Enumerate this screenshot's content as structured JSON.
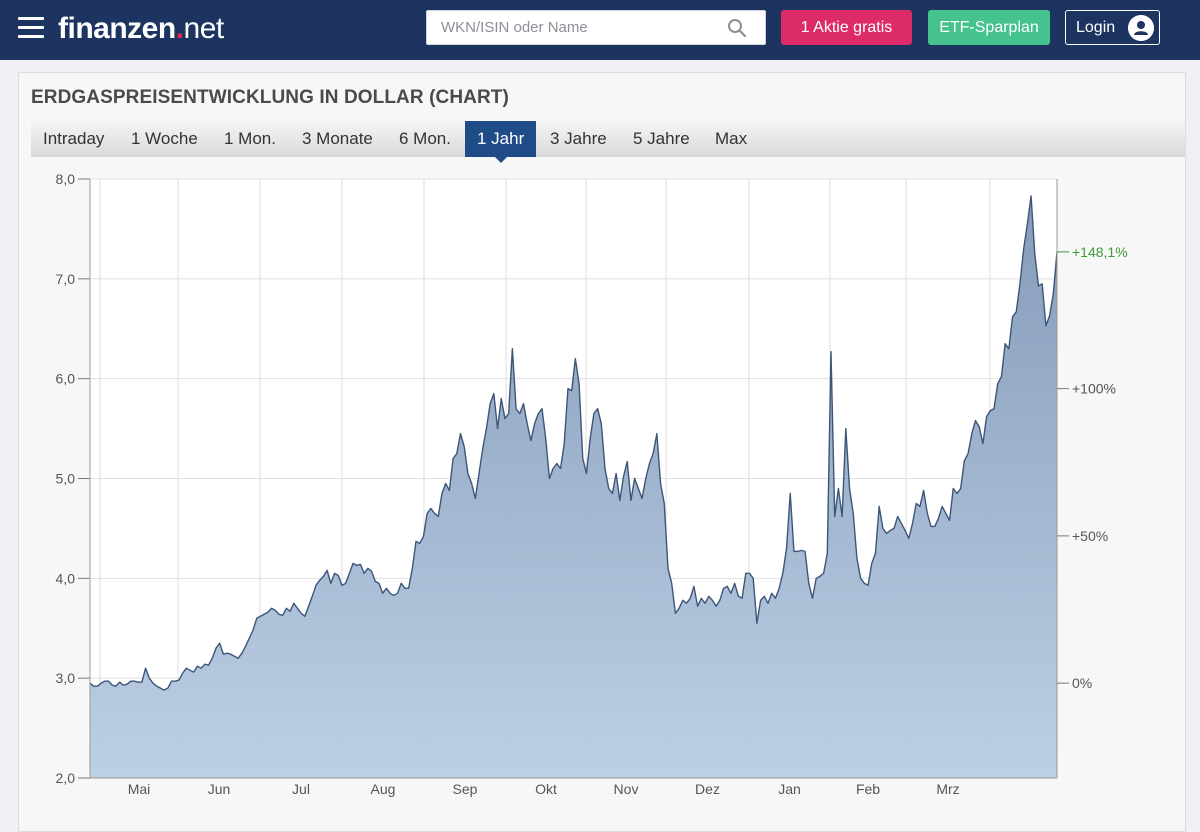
{
  "header": {
    "logo_bold": "finanzen",
    "logo_dot": ".",
    "logo_light": "net",
    "search_placeholder": "WKN/ISIN oder Name",
    "btn_gratis": "1 Aktie gratis",
    "btn_etf": "ETF-Sparplan",
    "btn_login": "Login"
  },
  "card": {
    "title": "ERDGASPREISENTWICKLUNG IN DOLLAR (CHART)"
  },
  "tabs": [
    {
      "label": "Intraday",
      "active": false
    },
    {
      "label": "1 Woche",
      "active": false
    },
    {
      "label": "1 Mon.",
      "active": false
    },
    {
      "label": "3 Monate",
      "active": false
    },
    {
      "label": "6 Mon.",
      "active": false
    },
    {
      "label": "1 Jahr",
      "active": true
    },
    {
      "label": "3 Jahre",
      "active": false
    },
    {
      "label": "5 Jahre",
      "active": false
    },
    {
      "label": "Max",
      "active": false
    }
  ],
  "chart_data": {
    "type": "area",
    "title": "",
    "ylim": [
      2.0,
      8.0
    ],
    "y_ticks": [
      "2,0",
      "3,0",
      "4,0",
      "5,0",
      "6,0",
      "7,0",
      "8,0"
    ],
    "y_tick_values": [
      2,
      3,
      4,
      5,
      6,
      7,
      8
    ],
    "right_ticks": [
      {
        "label": "0%",
        "value": 2.95
      },
      {
        "label": "+50%",
        "value": 4.425
      },
      {
        "label": "+100%",
        "value": 5.9
      },
      {
        "label": "+148,1%",
        "value": 7.27,
        "highlight": true
      }
    ],
    "x_labels": [
      "Mai",
      "Jun",
      "Jul",
      "Aug",
      "Sep",
      "Okt",
      "Nov",
      "Dez",
      "Jan",
      "Feb",
      "Mrz"
    ],
    "grid": true,
    "fill_color": "#8fa7c4",
    "line_color": "#3d5578",
    "series": [
      {
        "values": [
          2.95,
          2.92,
          2.92,
          2.95,
          2.97,
          2.97,
          2.93,
          2.92,
          2.96,
          2.93,
          2.94,
          2.97,
          2.97,
          2.96,
          2.96,
          3.1,
          3.0,
          2.95,
          2.92,
          2.9,
          2.88,
          2.9,
          2.97,
          2.97,
          2.98,
          3.05,
          3.1,
          3.08,
          3.06,
          3.12,
          3.1,
          3.14,
          3.13,
          3.2,
          3.3,
          3.35,
          3.24,
          3.25,
          3.24,
          3.22,
          3.2,
          3.25,
          3.32,
          3.4,
          3.48,
          3.6,
          3.62,
          3.64,
          3.66,
          3.7,
          3.68,
          3.64,
          3.63,
          3.7,
          3.67,
          3.75,
          3.7,
          3.65,
          3.62,
          3.72,
          3.82,
          3.93,
          3.98,
          4.02,
          4.08,
          3.95,
          4.05,
          4.03,
          3.93,
          3.95,
          4.05,
          4.15,
          4.13,
          4.14,
          4.05,
          4.1,
          4.07,
          3.97,
          3.95,
          3.85,
          3.9,
          3.85,
          3.83,
          3.85,
          3.95,
          3.9,
          3.9,
          4.1,
          4.37,
          4.35,
          4.42,
          4.65,
          4.7,
          4.65,
          4.62,
          4.85,
          4.95,
          4.88,
          5.2,
          5.25,
          5.45,
          5.32,
          5.05,
          4.95,
          4.8,
          5.05,
          5.3,
          5.5,
          5.75,
          5.85,
          5.5,
          5.8,
          5.6,
          5.65,
          6.3,
          5.7,
          5.65,
          5.75,
          5.55,
          5.38,
          5.55,
          5.65,
          5.7,
          5.4,
          5.0,
          5.1,
          5.15,
          5.1,
          5.35,
          5.9,
          5.88,
          6.2,
          5.95,
          5.2,
          5.05,
          5.4,
          5.65,
          5.7,
          5.55,
          5.1,
          4.9,
          4.85,
          5.05,
          4.78,
          5.02,
          5.17,
          4.78,
          5.0,
          4.9,
          4.8,
          5.0,
          5.15,
          5.25,
          5.45,
          4.95,
          4.75,
          4.1,
          3.95,
          3.65,
          3.7,
          3.78,
          3.75,
          3.8,
          3.92,
          3.72,
          3.8,
          3.75,
          3.82,
          3.78,
          3.72,
          3.78,
          3.9,
          3.92,
          3.85,
          3.95,
          3.82,
          3.8,
          4.05,
          4.05,
          4.0,
          3.55,
          3.78,
          3.82,
          3.75,
          3.85,
          3.8,
          3.9,
          4.05,
          4.3,
          4.85,
          4.27,
          4.27,
          4.28,
          4.27,
          3.95,
          3.8,
          4.0,
          4.02,
          4.05,
          4.25,
          6.27,
          4.62,
          4.9,
          4.62,
          5.5,
          4.9,
          4.65,
          4.2,
          4.0,
          3.95,
          3.93,
          4.15,
          4.25,
          4.72,
          4.5,
          4.45,
          4.48,
          4.5,
          4.62,
          4.55,
          4.48,
          4.4,
          4.55,
          4.75,
          4.72,
          4.88,
          4.65,
          4.52,
          4.52,
          4.6,
          4.72,
          4.65,
          4.58,
          4.9,
          4.85,
          4.9,
          5.18,
          5.25,
          5.45,
          5.58,
          5.52,
          5.35,
          5.62,
          5.68,
          5.7,
          5.95,
          6.02,
          6.35,
          6.3,
          6.62,
          6.67,
          6.95,
          7.3,
          7.55,
          7.83,
          7.25,
          6.93,
          6.95,
          6.53,
          6.63,
          6.85,
          7.27
        ]
      }
    ]
  }
}
